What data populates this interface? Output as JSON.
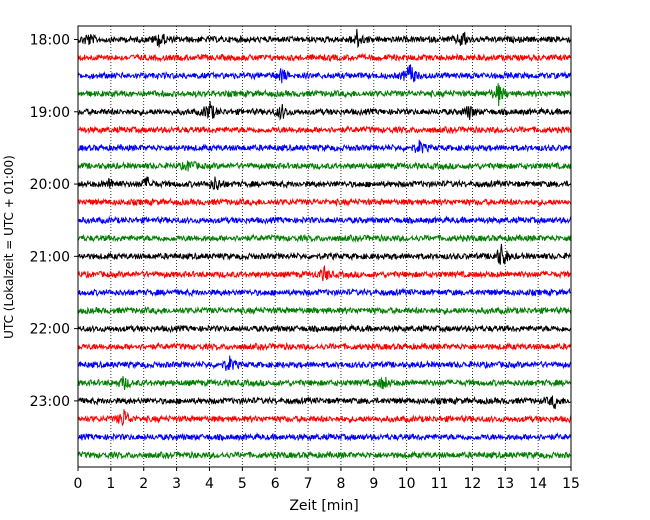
{
  "chart_data": {
    "type": "line",
    "subtype": "helicorder",
    "title": "",
    "xlabel": "Zeit  [min]",
    "ylabel": "UTC (Lokalzeit = UTC + 01:00)",
    "xlim": [
      0,
      15
    ],
    "x_ticks": [
      "0",
      "1",
      "2",
      "3",
      "4",
      "5",
      "6",
      "7",
      "8",
      "9",
      "10",
      "11",
      "12",
      "13",
      "14",
      "15"
    ],
    "y_tick_labels": [
      "18:00",
      "19:00",
      "20:00",
      "21:00",
      "22:00",
      "23:00"
    ],
    "y_tick_rows": [
      0,
      4,
      8,
      12,
      16,
      20
    ],
    "grid_x": "dotted",
    "trace_count": 24,
    "trace_minutes": 15,
    "color_cycle": [
      "#000000",
      "#ff0000",
      "#0000ff",
      "#008000"
    ],
    "events": [
      {
        "row": 0,
        "t": 0.3,
        "amp": 1.5
      },
      {
        "row": 0,
        "t": 2.5,
        "amp": 2.0
      },
      {
        "row": 0,
        "t": 8.5,
        "amp": 2.2
      },
      {
        "row": 0,
        "t": 11.7,
        "amp": 2.1
      },
      {
        "row": 2,
        "t": 6.2,
        "amp": 1.6
      },
      {
        "row": 2,
        "t": 10.1,
        "amp": 3.0
      },
      {
        "row": 3,
        "t": 12.8,
        "amp": 2.4
      },
      {
        "row": 4,
        "t": 4.0,
        "amp": 2.6
      },
      {
        "row": 4,
        "t": 6.2,
        "amp": 1.7
      },
      {
        "row": 4,
        "t": 11.9,
        "amp": 1.6
      },
      {
        "row": 6,
        "t": 10.4,
        "amp": 1.5
      },
      {
        "row": 7,
        "t": 3.4,
        "amp": 1.3
      },
      {
        "row": 8,
        "t": 1.0,
        "amp": 1.3
      },
      {
        "row": 8,
        "t": 2.1,
        "amp": 1.4
      },
      {
        "row": 8,
        "t": 4.2,
        "amp": 1.8
      },
      {
        "row": 12,
        "t": 12.9,
        "amp": 3.2
      },
      {
        "row": 13,
        "t": 7.5,
        "amp": 1.6
      },
      {
        "row": 18,
        "t": 4.6,
        "amp": 1.8
      },
      {
        "row": 19,
        "t": 9.3,
        "amp": 1.5
      },
      {
        "row": 19,
        "t": 1.4,
        "amp": 1.4
      },
      {
        "row": 20,
        "t": 14.5,
        "amp": 1.5
      },
      {
        "row": 21,
        "t": 1.4,
        "amp": 2.2
      }
    ]
  }
}
